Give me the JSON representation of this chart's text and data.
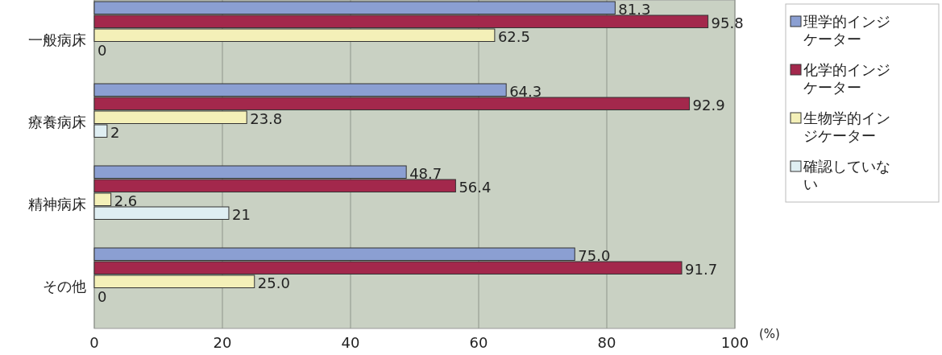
{
  "chart_data": {
    "type": "bar",
    "orientation": "horizontal",
    "categories": [
      "一般病床",
      "療養病床",
      "精神病床",
      "その他"
    ],
    "series": [
      {
        "name": "理学的インジケーター",
        "color": "#8b9fd2",
        "values": [
          81.3,
          64.3,
          48.7,
          75.0
        ],
        "value_labels": [
          "81.3",
          "64.3",
          "48.7",
          "75.0"
        ]
      },
      {
        "name": "化学的インジケーター",
        "color": "#a3284c",
        "values": [
          95.8,
          92.9,
          56.4,
          91.7
        ],
        "value_labels": [
          "95.8",
          "92.9",
          "56.4",
          "91.7"
        ]
      },
      {
        "name": "生物学的インジケーター",
        "color": "#f4f0b8",
        "values": [
          62.5,
          23.8,
          2.6,
          25.0
        ],
        "value_labels": [
          "62.5",
          "23.8",
          "2.6",
          "25.0"
        ]
      },
      {
        "name": "確認していない",
        "color": "#dfeef2",
        "values": [
          0,
          2,
          21,
          0
        ],
        "value_labels": [
          "0",
          "2",
          "21",
          "0"
        ]
      }
    ],
    "xlim": [
      0,
      100
    ],
    "xticks": [
      0,
      20,
      40,
      60,
      80,
      100
    ],
    "xlabel": "(%)",
    "grid": "x",
    "legend": "right"
  }
}
